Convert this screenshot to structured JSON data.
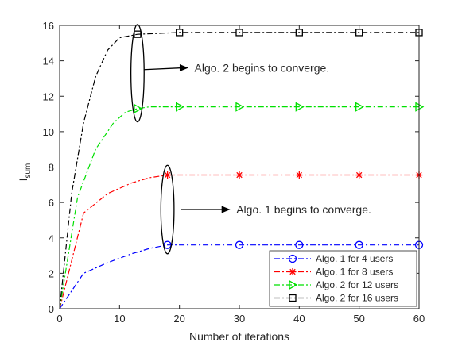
{
  "chart_data": {
    "type": "line",
    "title": "",
    "xlabel": "Number of iterations",
    "ylabel": "I",
    "ylabel_sub": "sum",
    "xlim": [
      0,
      60
    ],
    "ylim": [
      0,
      16
    ],
    "xticks": [
      0,
      10,
      20,
      30,
      40,
      50,
      60
    ],
    "yticks": [
      0,
      2,
      4,
      6,
      8,
      10,
      12,
      14,
      16
    ],
    "grid": false,
    "legend_position": "bottom-right",
    "series": [
      {
        "name": "Algo. 1 for 4 users",
        "color": "#0000ff",
        "marker": "circle",
        "x": [
          0,
          4,
          8,
          12,
          15,
          18,
          20,
          30,
          40,
          50,
          60
        ],
        "y": [
          0,
          2.0,
          2.6,
          3.1,
          3.4,
          3.6,
          3.6,
          3.6,
          3.6,
          3.6,
          3.6
        ],
        "marker_x": [
          18,
          30,
          40,
          50,
          60
        ]
      },
      {
        "name": "Algo. 1 for 8 users",
        "color": "#ff0000",
        "marker": "star",
        "x": [
          0,
          4,
          8,
          12,
          15,
          18,
          20,
          30,
          40,
          50,
          60
        ],
        "y": [
          0,
          5.4,
          6.5,
          7.1,
          7.4,
          7.55,
          7.55,
          7.55,
          7.55,
          7.55,
          7.55
        ],
        "marker_x": [
          18,
          30,
          40,
          50,
          60
        ]
      },
      {
        "name": "Algo. 2 for 12 users",
        "color": "#00e000",
        "marker": "triangle-right",
        "x": [
          0,
          3,
          6,
          9,
          11,
          13,
          15,
          20,
          30,
          40,
          50,
          60
        ],
        "y": [
          0,
          6.3,
          9.0,
          10.5,
          11.1,
          11.3,
          11.4,
          11.4,
          11.4,
          11.4,
          11.4,
          11.4
        ],
        "marker_x": [
          13,
          20,
          30,
          40,
          50,
          60
        ]
      },
      {
        "name": "Algo. 2 for 16 users",
        "color": "#000000",
        "marker": "square",
        "x": [
          0,
          2,
          4,
          6,
          8,
          10,
          13,
          20,
          30,
          40,
          50,
          60
        ],
        "y": [
          0,
          6.5,
          10.5,
          13.1,
          14.6,
          15.3,
          15.5,
          15.6,
          15.6,
          15.6,
          15.6,
          15.6
        ],
        "marker_x": [
          13,
          20,
          30,
          40,
          50,
          60
        ]
      }
    ],
    "annotations": [
      {
        "text": "Algo. 2 begins to converge.",
        "ellipse_center": [
          13,
          13.3
        ],
        "ellipse_rx": 1.1,
        "ellipse_ry": 2.75,
        "arrow_from": [
          14.1,
          13.5
        ],
        "arrow_to": [
          21.5,
          13.6
        ],
        "text_at": [
          22.5,
          13.6
        ]
      },
      {
        "text": "Algo. 1 begins to converge.",
        "ellipse_center": [
          18,
          5.6
        ],
        "ellipse_rx": 1.1,
        "ellipse_ry": 2.5,
        "arrow_from": [
          20.3,
          5.6
        ],
        "arrow_to": [
          28.5,
          5.6
        ],
        "text_at": [
          29.5,
          5.6
        ]
      }
    ]
  }
}
